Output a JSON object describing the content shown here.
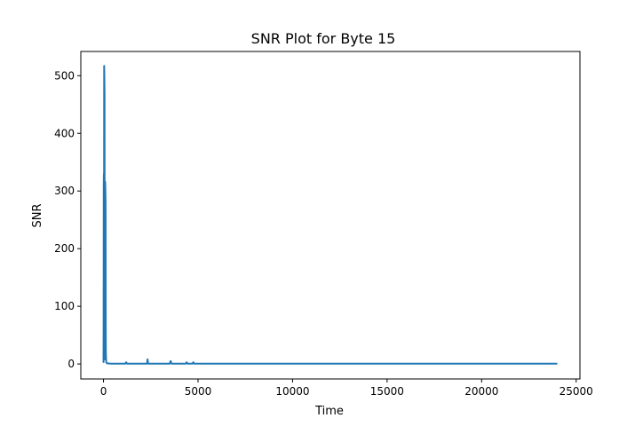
{
  "chart_data": {
    "type": "line",
    "title": "SNR Plot for Byte 15",
    "xlabel": "Time",
    "ylabel": "SNR",
    "xlim": [
      -1200,
      25200
    ],
    "ylim": [
      -26,
      542
    ],
    "xticks": [
      0,
      5000,
      10000,
      15000,
      20000,
      25000
    ],
    "xtick_labels": [
      "0",
      "5000",
      "10000",
      "15000",
      "20000",
      "25000"
    ],
    "yticks": [
      0,
      100,
      200,
      300,
      400,
      500
    ],
    "ytick_labels": [
      "0",
      "100",
      "200",
      "300",
      "400",
      "500"
    ],
    "grid": false,
    "legend": "none",
    "color": "#1f77b4",
    "series": [
      {
        "x": [
          0,
          5,
          12,
          20,
          28,
          35,
          45,
          55,
          62,
          70,
          80,
          90,
          100,
          110,
          118,
          125,
          135,
          145,
          155,
          165,
          175,
          190,
          205,
          220,
          240,
          260,
          300,
          350,
          400,
          500,
          600,
          800,
          1000,
          1150,
          1200,
          1250,
          1300,
          1500,
          1800,
          2000,
          2200,
          2300,
          2330,
          2360,
          2400,
          2600,
          2800,
          3000,
          3200,
          3400,
          3500,
          3550,
          3600,
          3800,
          4000,
          4200,
          4350,
          4400,
          4450,
          4600,
          4700,
          4750,
          4800,
          5000,
          6000,
          7000,
          8000,
          9000,
          9500,
          10000,
          10500,
          11000,
          12000,
          13000,
          14000,
          15000,
          16000,
          16500,
          17000,
          18000,
          19000,
          20000,
          21000,
          22000,
          22500,
          23000,
          23500,
          24000
        ],
        "y": [
          2,
          60,
          310,
          330,
          150,
          517,
          500,
          470,
          30,
          20,
          8,
          316,
          300,
          280,
          60,
          20,
          8,
          4,
          2,
          2,
          1.5,
          1.5,
          1,
          1,
          1,
          1,
          0.8,
          0.8,
          0.6,
          0.6,
          0.5,
          0.5,
          0.5,
          0.5,
          3,
          0.5,
          0.5,
          0.5,
          0.5,
          0.5,
          0.5,
          0.5,
          8,
          0.5,
          0.5,
          0.5,
          0.5,
          0.5,
          0.5,
          0.5,
          0.5,
          5,
          0.5,
          0.5,
          0.5,
          0.5,
          0.5,
          3,
          0.5,
          0.5,
          0.5,
          3,
          0.5,
          0.5,
          0.5,
          0.5,
          0.5,
          0.5,
          0.5,
          0.5,
          0.5,
          0.5,
          0.5,
          0.5,
          0.5,
          0.5,
          0.5,
          0.5,
          0.5,
          0.5,
          0.5,
          0.5,
          0.5,
          0.5,
          0.5,
          0.5,
          0.5,
          0.5
        ]
      }
    ]
  }
}
